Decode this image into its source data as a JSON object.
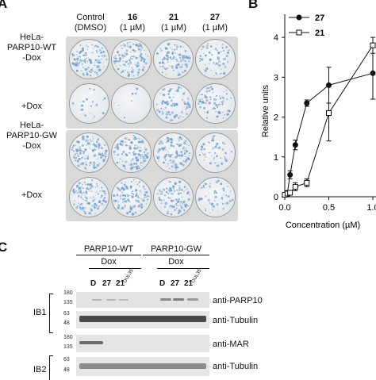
{
  "panel_a": {
    "letter": "A",
    "column_headers": [
      {
        "line1": "Control",
        "line2": "(DMSO)",
        "bold": false
      },
      {
        "line1": "16",
        "line2": "(1 µM)",
        "bold": true
      },
      {
        "line1": "21",
        "line2": "(1 µM)",
        "bold": true
      },
      {
        "line1": "27",
        "line2": "(1 µM)",
        "bold": true
      }
    ],
    "row_groups": [
      {
        "title1": "HeLa-",
        "title2": "PARP10-WT",
        "rows": [
          "-Dox",
          "+Dox"
        ]
      },
      {
        "title1": "HeLa-",
        "title2": "PARP10-GW",
        "rows": [
          "-Dox",
          "+Dox"
        ]
      }
    ],
    "well_density": [
      [
        0.85,
        0.8,
        0.75,
        0.45
      ],
      [
        0.15,
        0.05,
        0.6,
        0.55
      ],
      [
        0.85,
        0.85,
        0.8,
        0.35
      ],
      [
        0.8,
        0.8,
        0.75,
        0.35
      ]
    ],
    "stain_color": "#6f9fd0"
  },
  "panel_b": {
    "letter": "B",
    "chart_data": {
      "type": "line",
      "xlabel": "Concentration (µM)",
      "ylabel": "Relative units",
      "xlim": [
        0,
        1.0
      ],
      "ylim": [
        0,
        4.5
      ],
      "x_ticks": [
        "0.0",
        "0.5",
        "1.0"
      ],
      "x_tick_values": [
        0,
        0.5,
        1.0
      ],
      "y_ticks": [
        "0",
        "1",
        "2",
        "3",
        "4"
      ],
      "y_tick_values": [
        0,
        1,
        2,
        3,
        4
      ],
      "legend_placement": "top-left",
      "series": [
        {
          "name": "27",
          "marker": "filled-circle",
          "x": [
            0,
            0.03,
            0.06,
            0.12,
            0.25,
            0.5,
            1.0
          ],
          "y": [
            0.05,
            0.1,
            0.55,
            1.3,
            2.35,
            2.8,
            3.1
          ],
          "err": [
            0.05,
            0.05,
            0.1,
            0.12,
            0.08,
            0.45,
            0.65
          ]
        },
        {
          "name": "21",
          "marker": "open-square",
          "x": [
            0,
            0.03,
            0.06,
            0.12,
            0.25,
            0.5,
            1.0
          ],
          "y": [
            0.05,
            0.08,
            0.1,
            0.25,
            0.35,
            2.1,
            3.8
          ],
          "err": [
            0.05,
            0.05,
            0.05,
            0.1,
            0.1,
            0.7,
            0.2
          ]
        }
      ]
    }
  },
  "panel_c": {
    "letter": "C",
    "groups": [
      {
        "name": "PARP10-WT",
        "sub": "Dox"
      },
      {
        "name": "PARP10-GW",
        "sub": "Dox"
      }
    ],
    "lane_labels_wt": [
      "D",
      "27",
      "21"
    ],
    "lane_label_rot_wt": "OUL35",
    "lane_labels_gw": [
      "D",
      "27",
      "21"
    ],
    "lane_label_rot_gw": "OUL35",
    "blots": [
      {
        "block": "IB1",
        "label": "anti-PARP10",
        "mw_top": "180",
        "mw_bottom": "135"
      },
      {
        "block": "",
        "label": "anti-Tubulin",
        "mw_top": "63",
        "mw_bottom": "48"
      },
      {
        "block": "",
        "label": "anti-MAR",
        "mw_top": "180",
        "mw_bottom": "135"
      },
      {
        "block": "IB2",
        "label": "anti-Tubulin",
        "mw_top": "63",
        "mw_bottom": "48"
      }
    ]
  }
}
